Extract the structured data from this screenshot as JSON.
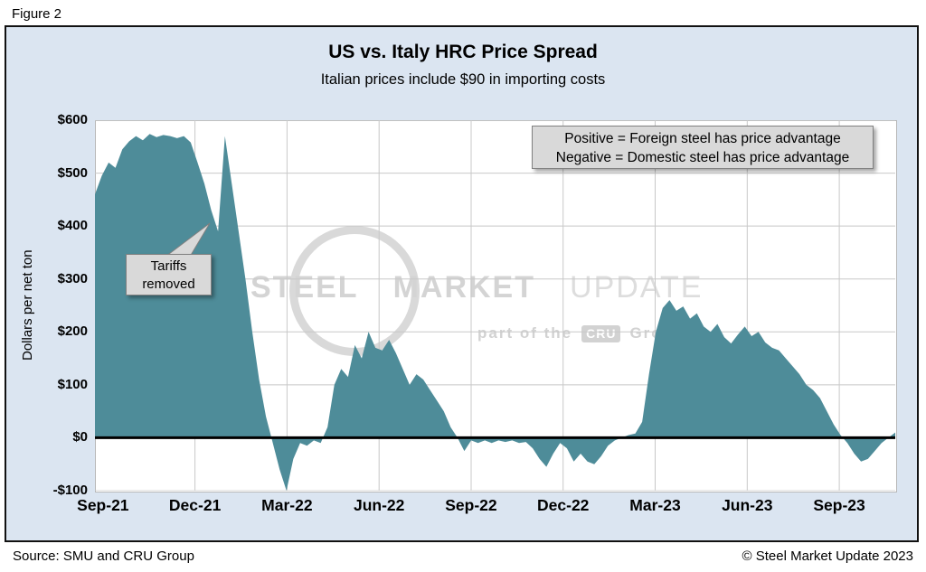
{
  "figure_label": "Figure 2",
  "watermark": {
    "word1": "STEEL",
    "word2": "MARKET",
    "word3": "UPDATE",
    "tagline_prefix": "part of the",
    "tagline_badge": "CRU",
    "tagline_suffix": "Group"
  },
  "footer": {
    "source": "Source: SMU and CRU Group",
    "copyright": "© Steel Market Update 2023"
  },
  "colors": {
    "panel_background": "#dbe5f1",
    "area_fill": "#4E8C99",
    "grid": "#c8c8c8",
    "zero_line": "#000000",
    "annotation_box": "#d9d9d9"
  },
  "chart_data": {
    "type": "area",
    "title": "US vs. Italy HRC Price Spread",
    "subtitle": "Italian prices include $90 in importing costs",
    "ylabel": "Dollars per net ton",
    "xlabel": "",
    "unit": "USD per net ton",
    "ylim": [
      -100,
      600
    ],
    "ytick_interval": 100,
    "ytick_labels": [
      "$600",
      "$500",
      "$400",
      "$300",
      "$200",
      "$100",
      "$0",
      "-$100"
    ],
    "xtick_labels": [
      "Sep-21",
      "Dec-21",
      "Mar-22",
      "Jun-22",
      "Sep-22",
      "Dec-22",
      "Mar-23",
      "Jun-23",
      "Sep-23"
    ],
    "x_frequency": "weekly",
    "series_name": "US minus Italy HRC price spread",
    "values": [
      460,
      495,
      520,
      510,
      545,
      560,
      570,
      562,
      574,
      568,
      572,
      570,
      566,
      570,
      558,
      520,
      480,
      430,
      390,
      570,
      480,
      390,
      300,
      200,
      110,
      40,
      -10,
      -60,
      -100,
      -40,
      -10,
      -15,
      -5,
      -10,
      20,
      100,
      130,
      115,
      175,
      150,
      200,
      170,
      165,
      185,
      160,
      130,
      100,
      120,
      110,
      90,
      70,
      50,
      20,
      0,
      -25,
      -5,
      -10,
      -5,
      -10,
      -5,
      -8,
      -5,
      -10,
      -8,
      -20,
      -40,
      -55,
      -30,
      -10,
      -20,
      -45,
      -30,
      -45,
      -50,
      -35,
      -15,
      -5,
      0,
      5,
      8,
      30,
      120,
      200,
      245,
      260,
      240,
      248,
      225,
      235,
      210,
      200,
      215,
      190,
      178,
      195,
      210,
      192,
      200,
      180,
      170,
      165,
      150,
      135,
      120,
      100,
      90,
      75,
      50,
      25,
      5,
      -10,
      -30,
      -45,
      -40,
      -25,
      -10,
      0,
      10
    ],
    "fill_color": "#4E8C99",
    "grid": true,
    "zero_line": true,
    "legend_position": "none",
    "annotations": {
      "tariffs": {
        "line1": "Tariffs",
        "line2": "removed"
      },
      "note": {
        "line1": "Positive = Foreign steel has price advantage",
        "line2": "Negative = Domestic steel has price advantage"
      }
    }
  }
}
